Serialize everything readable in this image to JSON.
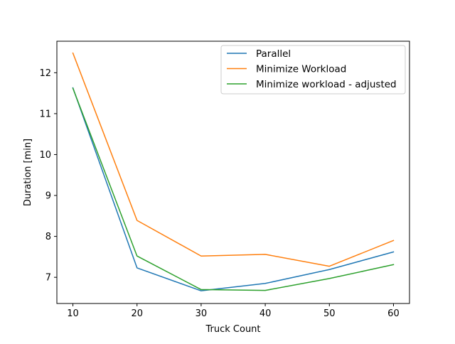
{
  "chart_data": {
    "type": "line",
    "title": "",
    "xlabel": "Truck Count",
    "ylabel": "Duration [min]",
    "x": [
      10,
      20,
      30,
      40,
      50,
      60
    ],
    "xticks": [
      10,
      20,
      30,
      40,
      50,
      60
    ],
    "yticks": [
      7,
      8,
      9,
      10,
      11,
      12
    ],
    "xlim": [
      7.5,
      62.5
    ],
    "ylim": [
      6.36,
      12.77
    ],
    "grid": false,
    "legend_position": "upper-right",
    "series": [
      {
        "name": "Parallel",
        "color": "#1f77b4",
        "values": [
          11.63,
          7.23,
          6.67,
          6.85,
          7.19,
          7.62
        ]
      },
      {
        "name": "Minimize Workload",
        "color": "#ff7f0e",
        "values": [
          12.48,
          8.39,
          7.52,
          7.56,
          7.27,
          7.9
        ]
      },
      {
        "name": "Minimize workload - adjusted",
        "color": "#2ca02c",
        "values": [
          11.62,
          7.52,
          6.7,
          6.68,
          6.97,
          7.31
        ]
      }
    ]
  }
}
